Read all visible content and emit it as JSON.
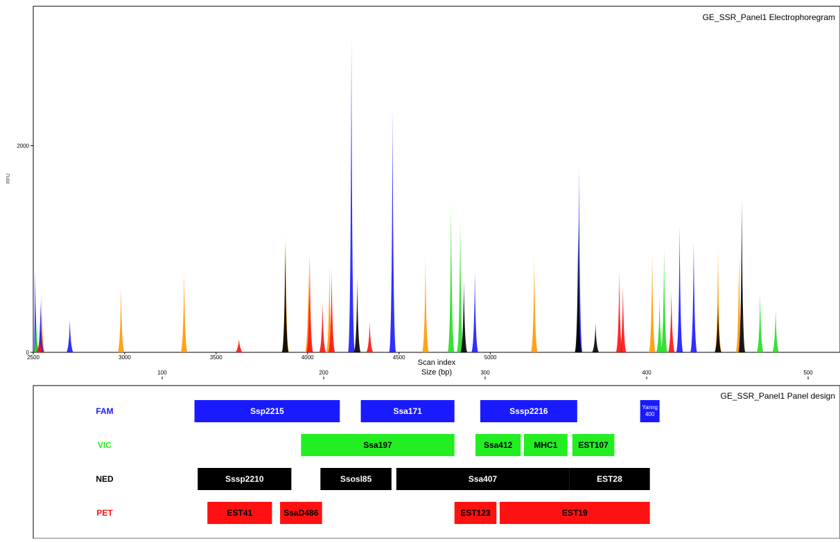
{
  "chart_data": [
    {
      "type": "area",
      "title": "GE_SSR_Panel1 Electrophoregram",
      "ylabel": "RFU",
      "xlabel": "Scan index",
      "xlim": [
        2500,
        6912
      ],
      "ylim": [
        0,
        3350
      ],
      "x_ticks": [
        2500,
        3000,
        3500,
        4000,
        4500,
        5000
      ],
      "y_ticks": [
        0,
        2000
      ],
      "secondary_axis": {
        "label": "Size (bp)",
        "ticks": [
          100,
          200,
          300,
          400,
          500
        ]
      },
      "dye_colors": {
        "FAM": "#1a1aff",
        "VIC": "#22dd22",
        "NED": "#000000",
        "PET": "#ff1111",
        "LIZ": "#ff9900"
      },
      "series": [
        {
          "dye": "LIZ",
          "color": "#ff9900",
          "peaks": [
            [
              2545,
              580
            ],
            [
              2980,
              640
            ],
            [
              3325,
              800
            ],
            [
              3880,
              1150
            ],
            [
              4005,
              820
            ],
            [
              4120,
              850
            ],
            [
              4645,
              920
            ],
            [
              5240,
              940
            ],
            [
              5885,
              980
            ],
            [
              6245,
              1020
            ],
            [
              6360,
              980
            ],
            [
              7030,
              1050
            ],
            [
              7340,
              1030
            ]
          ]
        },
        {
          "dye": "FAM",
          "color": "#1a1aff",
          "peaks": [
            [
              2510,
              800
            ],
            [
              2540,
              500
            ],
            [
              2700,
              320
            ],
            [
              4240,
              3050
            ],
            [
              4465,
              2350
            ],
            [
              4915,
              780
            ],
            [
              5485,
              1800
            ],
            [
              6035,
              1230
            ],
            [
              6112,
              1080
            ]
          ]
        },
        {
          "dye": "VIC",
          "color": "#22dd22",
          "peaks": [
            [
              2515,
              350
            ],
            [
              4785,
              1450
            ],
            [
              4835,
              1300
            ],
            [
              5925,
              520
            ],
            [
              5950,
              1010
            ],
            [
              6475,
              580
            ],
            [
              6560,
              420
            ]
          ]
        },
        {
          "dye": "NED",
          "color": "#000000",
          "peaks": [
            [
              3878,
              1070
            ],
            [
              4272,
              720
            ],
            [
              4855,
              700
            ],
            [
              5480,
              1260
            ],
            [
              5575,
              280
            ],
            [
              6245,
              470
            ],
            [
              6375,
              1480
            ]
          ]
        },
        {
          "dye": "PET",
          "color": "#ff1111",
          "peaks": [
            [
              2535,
              150
            ],
            [
              3625,
              130
            ],
            [
              4012,
              960
            ],
            [
              4082,
              500
            ],
            [
              4132,
              800
            ],
            [
              4340,
              300
            ],
            [
              5705,
              790
            ],
            [
              5725,
              650
            ],
            [
              5990,
              600
            ]
          ]
        }
      ]
    },
    {
      "type": "table",
      "title": "GE_SSR_Panel1 Panel design",
      "x_axis": "Size (bp)",
      "rows": [
        {
          "dye": "FAM",
          "color": "#1a1aff",
          "text_color": "#ffffff",
          "markers": [
            {
              "name": "Ssp2215",
              "start": 120,
              "end": 210
            },
            {
              "name": "Ssa171",
              "start": 223,
              "end": 281
            },
            {
              "name": "Sssp2216",
              "start": 297,
              "end": 357
            },
            {
              "name": "Yanng 400",
              "start": 396,
              "end": 408
            }
          ]
        },
        {
          "dye": "VIC",
          "color": "#22ee22",
          "text_color": "#000000",
          "markers": [
            {
              "name": "Ssa197",
              "start": 186,
              "end": 281
            },
            {
              "name": "Ssa412",
              "start": 294,
              "end": 322
            },
            {
              "name": "MHC1",
              "start": 324,
              "end": 351
            },
            {
              "name": "EST107",
              "start": 354,
              "end": 380
            }
          ]
        },
        {
          "dye": "NED",
          "color": "#000000",
          "text_color": "#ffffff",
          "markers": [
            {
              "name": "Sssp2210",
              "start": 122,
              "end": 180
            },
            {
              "name": "Ssosl85",
              "start": 198,
              "end": 242
            },
            {
              "name": "Ssa407",
              "start": 245,
              "end": 352
            },
            {
              "name": "EST28",
              "start": 352,
              "end": 402
            }
          ]
        },
        {
          "dye": "PET",
          "color": "#ff1111",
          "text_color": "#000000",
          "markers": [
            {
              "name": "EST41",
              "start": 128,
              "end": 168
            },
            {
              "name": "SsaD486",
              "start": 173,
              "end": 199
            },
            {
              "name": "EST123",
              "start": 281,
              "end": 307
            },
            {
              "name": "EST19",
              "start": 309,
              "end": 402
            }
          ]
        }
      ]
    }
  ]
}
